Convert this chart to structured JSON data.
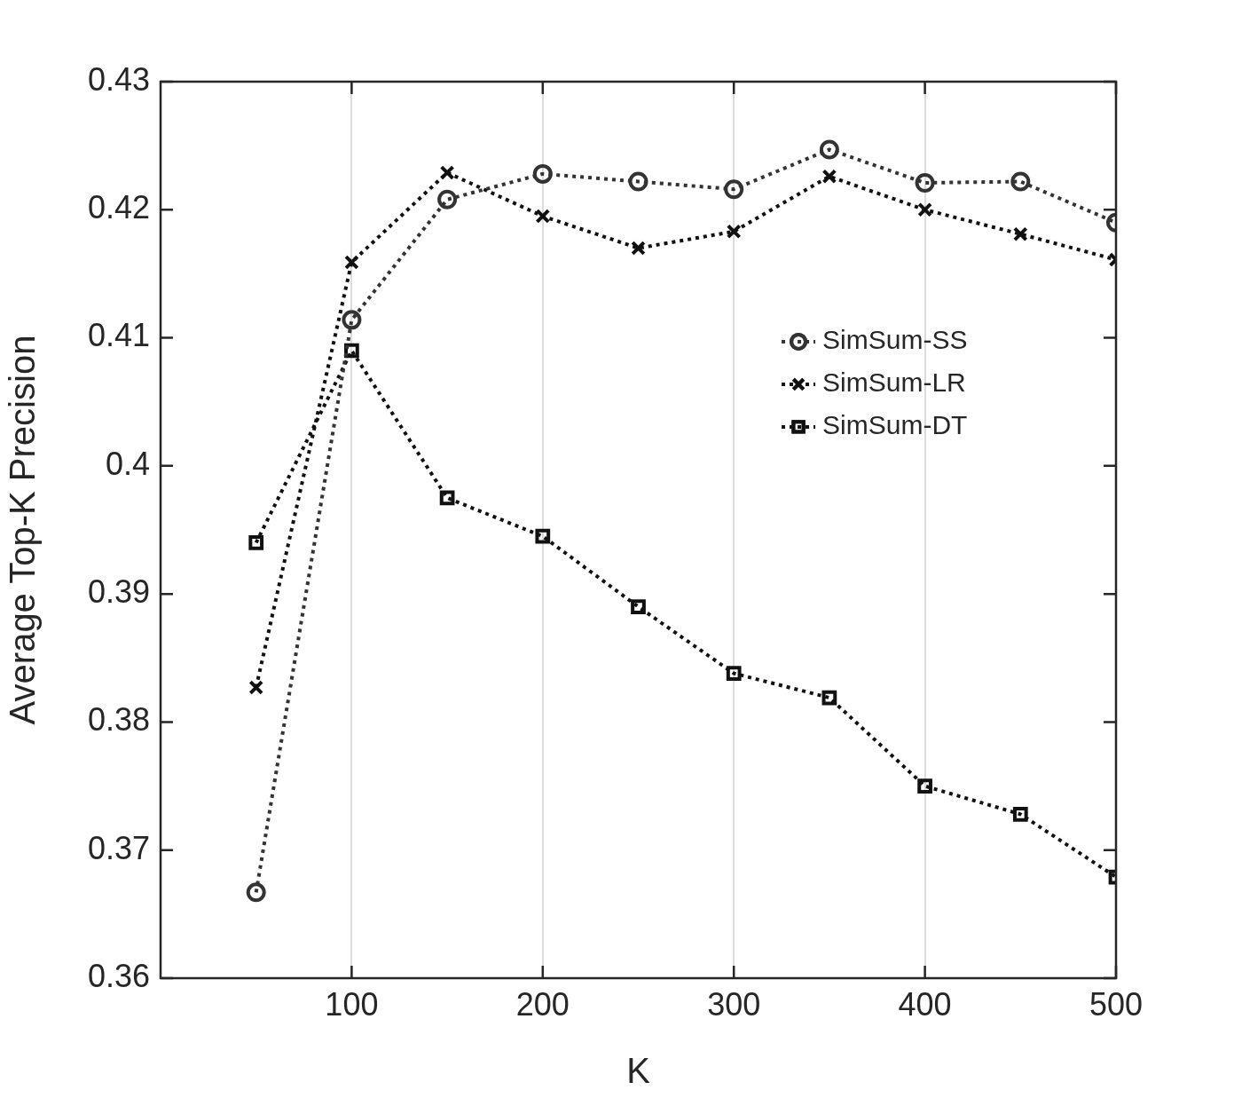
{
  "chart_data": {
    "type": "line",
    "xlabel": "K",
    "ylabel": "Average Top-K Precision",
    "x": [
      50,
      100,
      150,
      200,
      250,
      300,
      350,
      400,
      450,
      500
    ],
    "xlim": [
      0,
      500
    ],
    "xticks": [
      100,
      200,
      300,
      400,
      500
    ],
    "ylim": [
      0.36,
      0.43
    ],
    "yticks": [
      0.36,
      0.37,
      0.38,
      0.39,
      0.4,
      0.41,
      0.42,
      0.43
    ],
    "grid": "x",
    "legend": "right",
    "line_style": "dotted",
    "series": [
      {
        "name": "SimSum-SS",
        "color": "#333333",
        "marker": "circle",
        "values": [
          0.3667,
          0.4114,
          0.4208,
          0.4228,
          0.4222,
          0.4216,
          0.4247,
          0.4221,
          0.4222,
          0.419
        ]
      },
      {
        "name": "SimSum-LR",
        "color": "#111111",
        "marker": "cross",
        "values": [
          0.3827,
          0.4159,
          0.4229,
          0.4195,
          0.417,
          0.4183,
          0.4226,
          0.42,
          0.4181,
          0.4161
        ]
      },
      {
        "name": "SimSum-DT",
        "color": "#111111",
        "marker": "square",
        "values": [
          0.394,
          0.409,
          0.3975,
          0.3945,
          0.389,
          0.3838,
          0.3819,
          0.375,
          0.3728,
          0.3679
        ]
      }
    ]
  }
}
